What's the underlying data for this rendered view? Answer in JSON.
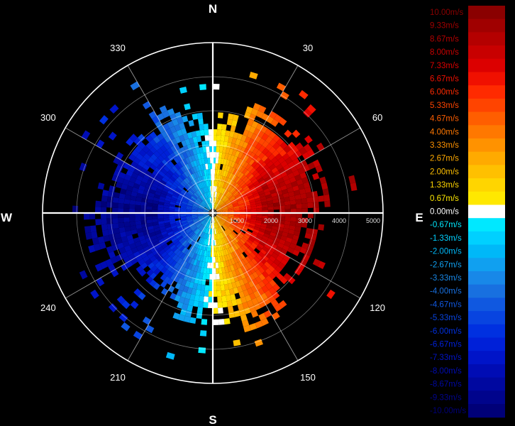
{
  "radar": {
    "cardinals": {
      "north": "N",
      "east": "E",
      "south": "S",
      "west": "W"
    },
    "azimuth_labels": [
      {
        "angle": 30,
        "text": "30"
      },
      {
        "angle": 60,
        "text": "60"
      },
      {
        "angle": 120,
        "text": "120"
      },
      {
        "angle": 150,
        "text": "150"
      },
      {
        "angle": 210,
        "text": "210"
      },
      {
        "angle": 240,
        "text": "240"
      },
      {
        "angle": 300,
        "text": "300"
      },
      {
        "angle": 330,
        "text": "330"
      }
    ],
    "range_labels": [
      "1000",
      "2000",
      "3000",
      "4000",
      "5000"
    ],
    "colors": {
      "background": "#000000",
      "grid": "#ffffff"
    }
  },
  "legend": {
    "unit": "m/s",
    "entries": [
      {
        "label": "10.00m/s",
        "color": "#8a0000"
      },
      {
        "label": "9.33m/s",
        "color": "#a00000"
      },
      {
        "label": "8.67m/s",
        "color": "#b40000"
      },
      {
        "label": "8.00m/s",
        "color": "#c80000"
      },
      {
        "label": "7.33m/s",
        "color": "#dc0000"
      },
      {
        "label": "6.67m/s",
        "color": "#f01000"
      },
      {
        "label": "6.00m/s",
        "color": "#ff2a00"
      },
      {
        "label": "5.33m/s",
        "color": "#ff4400"
      },
      {
        "label": "4.67m/s",
        "color": "#ff5e00"
      },
      {
        "label": "4.00m/s",
        "color": "#ff7800"
      },
      {
        "label": "3.33m/s",
        "color": "#ff9200"
      },
      {
        "label": "2.67m/s",
        "color": "#ffaa00"
      },
      {
        "label": "2.00m/s",
        "color": "#ffc000"
      },
      {
        "label": "1.33m/s",
        "color": "#ffd500"
      },
      {
        "label": "0.67m/s",
        "color": "#ffe800"
      },
      {
        "label": "0.00m/s",
        "color": "#ffffff"
      },
      {
        "label": "-0.67m/s",
        "color": "#00e8ff"
      },
      {
        "label": "-1.33m/s",
        "color": "#00d0ff"
      },
      {
        "label": "-2.00m/s",
        "color": "#00b8f8"
      },
      {
        "label": "-2.67m/s",
        "color": "#10a0f0"
      },
      {
        "label": "-3.33m/s",
        "color": "#1888e8"
      },
      {
        "label": "-4.00m/s",
        "color": "#1870e0"
      },
      {
        "label": "-4.67m/s",
        "color": "#1058e0"
      },
      {
        "label": "-5.33m/s",
        "color": "#0844e0"
      },
      {
        "label": "-6.00m/s",
        "color": "#0030e0"
      },
      {
        "label": "-6.67m/s",
        "color": "#0020d8"
      },
      {
        "label": "-7.33m/s",
        "color": "#0014c8"
      },
      {
        "label": "-8.00m/s",
        "color": "#000cb4"
      },
      {
        "label": "-8.67m/s",
        "color": "#0008a0"
      },
      {
        "label": "-9.33m/s",
        "color": "#00048c"
      },
      {
        "label": "-10.00m/s",
        "color": "#000078"
      }
    ]
  }
}
